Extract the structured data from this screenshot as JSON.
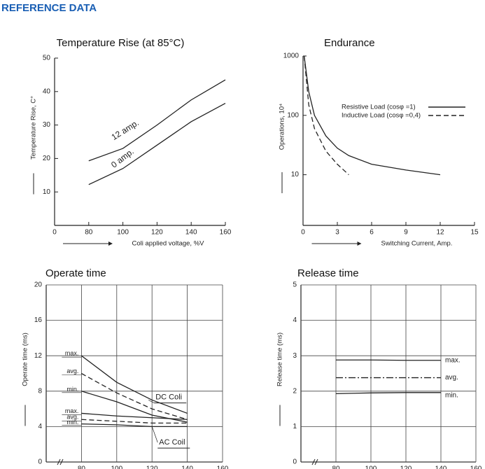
{
  "header": {
    "title": "REFERENCE DATA"
  },
  "chart_data": [
    {
      "type": "line",
      "title": "Temperature Rise (at 85°C)",
      "ylabel": "Temperature Rise, C°",
      "xlabel": "Coli applied voltage, %V",
      "origin_label": "0",
      "xlim": [
        60,
        160
      ],
      "xticks": [
        80,
        100,
        120,
        140,
        160
      ],
      "ylim": [
        0,
        50
      ],
      "yticks": [
        10,
        20,
        30,
        40,
        50
      ],
      "grid": false,
      "log": false,
      "series_labels": "on-line",
      "series": [
        {
          "name": "12 amp.",
          "color": "#222",
          "dash": "solid",
          "x": [
            80,
            100,
            120,
            140,
            160
          ],
          "values": [
            19.3,
            23,
            30,
            37.5,
            43.5
          ]
        },
        {
          "name": "0 amp.",
          "color": "#222",
          "dash": "solid",
          "x": [
            80,
            100,
            120,
            140,
            160
          ],
          "values": [
            12.2,
            17,
            24,
            31,
            36.5
          ]
        }
      ]
    },
    {
      "type": "line",
      "title": "Endurance",
      "ylabel": "Operations, 10⁴",
      "xlabel": "Switching Current, Amp.",
      "xlim": [
        0,
        15
      ],
      "xticks": [
        0,
        3,
        6,
        9,
        12,
        15
      ],
      "ylim": [
        1.4,
        1000
      ],
      "yticks": [
        10,
        100,
        1000
      ],
      "grid": false,
      "log": true,
      "series_labels": "legend",
      "series": [
        {
          "name": "Resistive Load (cosφ =1)",
          "color": "#222",
          "dash": "solid",
          "x": [
            0.1,
            0.5,
            1,
            2,
            3,
            4,
            6,
            9,
            12
          ],
          "values": [
            1000,
            250,
            100,
            45,
            28,
            21,
            15,
            12,
            10
          ]
        },
        {
          "name": "Inductive Load (cosφ =0,4)",
          "color": "#222",
          "dash": "dashed",
          "x": [
            0.1,
            0.5,
            1,
            2,
            3,
            4
          ],
          "values": [
            1000,
            150,
            60,
            25,
            15,
            10
          ]
        }
      ]
    },
    {
      "type": "line",
      "title": "Operate time",
      "ylabel": "Operate time (ms)",
      "xlim": [
        60,
        160
      ],
      "xticks": [
        80,
        100,
        120,
        140,
        160
      ],
      "ylim": [
        0,
        20
      ],
      "yticks": [
        0,
        4,
        8,
        12,
        16,
        20
      ],
      "grid": true,
      "log": false,
      "series_labels": "left",
      "groups": [
        {
          "label": "DC Coli",
          "at": [
            122,
            7.3
          ]
        },
        {
          "label": "AC Coil",
          "at": [
            124,
            2.2
          ]
        }
      ],
      "series": [
        {
          "name": "max.",
          "group": 0,
          "color": "#222",
          "dash": "solid",
          "x": [
            80,
            100,
            120,
            140
          ],
          "values": [
            12,
            9,
            7,
            5.5
          ]
        },
        {
          "name": "avg.",
          "group": 0,
          "color": "#222",
          "dash": "dashed",
          "x": [
            80,
            100,
            120,
            140
          ],
          "values": [
            10,
            7.8,
            6,
            4.8
          ]
        },
        {
          "name": "min.",
          "group": 0,
          "color": "#222",
          "dash": "solid",
          "x": [
            80,
            100,
            120,
            140
          ],
          "values": [
            8,
            6.8,
            5.3,
            4.5
          ]
        },
        {
          "name": "max.",
          "group": 1,
          "color": "#222",
          "dash": "solid",
          "x": [
            80,
            100,
            120,
            140
          ],
          "values": [
            5.5,
            5.2,
            5,
            4.8
          ]
        },
        {
          "name": "avg.",
          "group": 1,
          "color": "#222",
          "dash": "dashed",
          "x": [
            80,
            100,
            120,
            140
          ],
          "values": [
            4.8,
            4.6,
            4.4,
            4.4
          ]
        },
        {
          "name": "min.",
          "group": 1,
          "color": "#222",
          "dash": "solid",
          "x": [
            80,
            100,
            120,
            140
          ],
          "values": [
            4.3,
            4.2,
            4,
            4
          ]
        }
      ]
    },
    {
      "type": "line",
      "title": "Release time",
      "ylabel": "Release time (ms)",
      "xlim": [
        60,
        160
      ],
      "xticks": [
        80,
        100,
        120,
        140,
        160
      ],
      "ylim": [
        0,
        5
      ],
      "yticks": [
        0,
        1,
        2,
        3,
        4,
        5
      ],
      "grid": true,
      "log": false,
      "series_labels": "right",
      "series": [
        {
          "name": "max.",
          "color": "#222",
          "dash": "solid",
          "x": [
            80,
            100,
            120,
            140
          ],
          "values": [
            2.88,
            2.88,
            2.87,
            2.87
          ]
        },
        {
          "name": "avg.",
          "color": "#222",
          "dash": "dashdot",
          "x": [
            80,
            100,
            120,
            140
          ],
          "values": [
            2.38,
            2.38,
            2.38,
            2.38
          ]
        },
        {
          "name": "min.",
          "color": "#222",
          "dash": "solid",
          "x": [
            80,
            100,
            120,
            140
          ],
          "values": [
            1.93,
            1.95,
            1.96,
            1.96
          ]
        }
      ]
    }
  ]
}
